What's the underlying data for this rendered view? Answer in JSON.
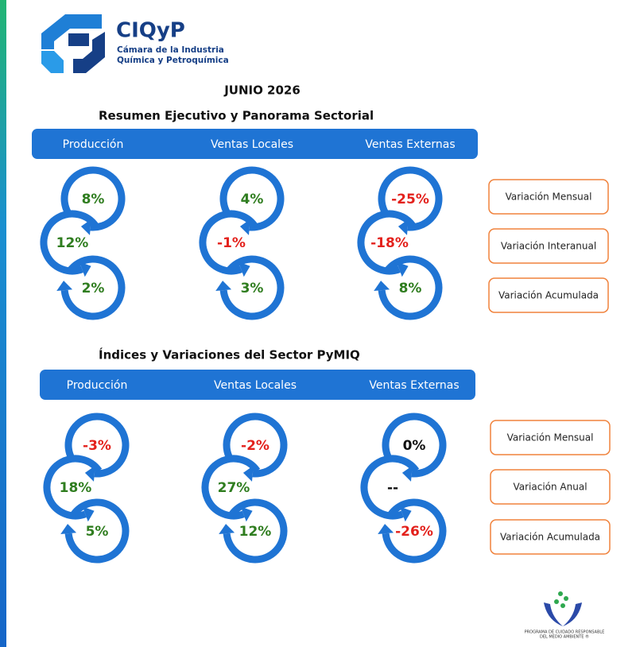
{
  "header": {
    "brand": "CIQyP",
    "subtitle_lines": [
      "Cámara de la Industria",
      "Química y Petroquímica"
    ]
  },
  "period": "JUNIO 2026",
  "sections": [
    {
      "title": "Resumen Ejecutivo y Panorama Sectorial",
      "columns": [
        "Producción",
        "Ventas Locales",
        "Ventas Externas"
      ],
      "values": [
        [
          {
            "text": "8%",
            "color": "#2f7d1f"
          },
          {
            "text": "12%",
            "color": "#2f7d1f"
          },
          {
            "text": "2%",
            "color": "#2f7d1f"
          }
        ],
        [
          {
            "text": "4%",
            "color": "#2f7d1f"
          },
          {
            "text": "-1%",
            "color": "#e3211c"
          },
          {
            "text": "3%",
            "color": "#2f7d1f"
          }
        ],
        [
          {
            "text": "-25%",
            "color": "#e3211c"
          },
          {
            "text": "-18%",
            "color": "#e3211c"
          },
          {
            "text": "8%",
            "color": "#2f7d1f"
          }
        ]
      ],
      "legend": [
        "Variación Mensual",
        "Variación Interanual",
        "Variación Acumulada"
      ]
    },
    {
      "title": "Índices y Variaciones del Sector PyMIQ",
      "columns": [
        "Producción",
        "Ventas Locales",
        "Ventas Externas"
      ],
      "values": [
        [
          {
            "text": "-3%",
            "color": "#e3211c"
          },
          {
            "text": "18%",
            "color": "#2f7d1f"
          },
          {
            "text": "5%",
            "color": "#2f7d1f"
          }
        ],
        [
          {
            "text": "-2%",
            "color": "#e3211c"
          },
          {
            "text": "27%",
            "color": "#2f7d1f"
          },
          {
            "text": "12%",
            "color": "#2f7d1f"
          }
        ],
        [
          {
            "text": "0%",
            "color": "#111111"
          },
          {
            "text": "--",
            "color": "#111111"
          },
          {
            "text": "-26%",
            "color": "#e3211c"
          }
        ]
      ],
      "legend": [
        "Variación Mensual",
        "Variación Anual",
        "Variación Acumulada"
      ]
    }
  ],
  "footer_logo": {
    "lines": [
      "PROGRAMA DE CUIDADO RESPONSABLE",
      "DEL MEDIO AMBIENTE ®"
    ]
  }
}
